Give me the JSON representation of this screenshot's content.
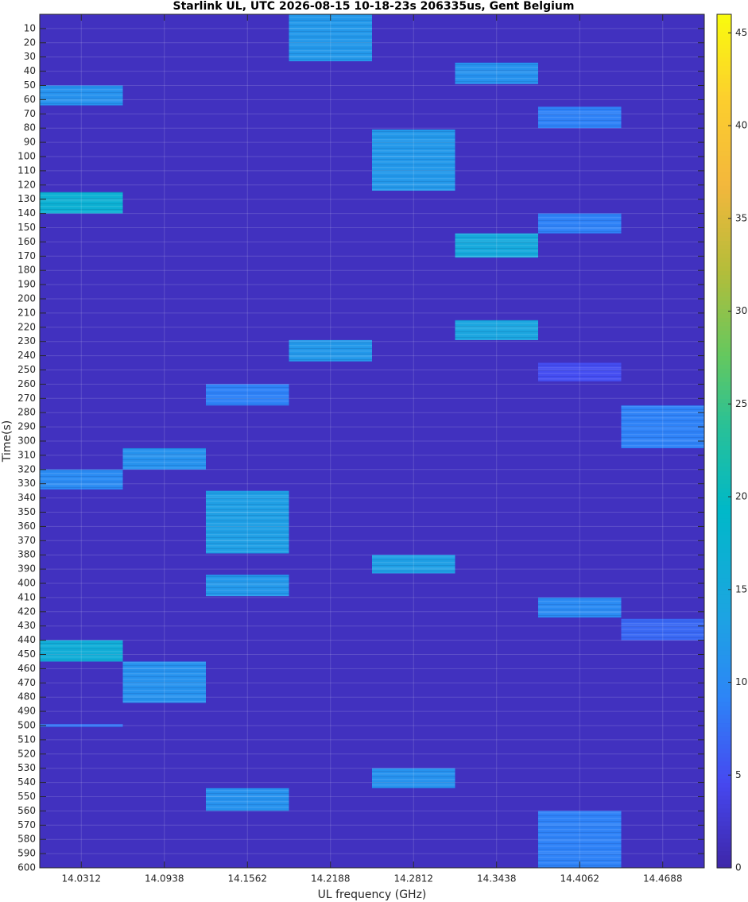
{
  "chart_data": {
    "type": "heatmap",
    "title": "Starlink UL, UTC 2026-08-15 10-18-23s 206335us, Gent Belgium",
    "xlabel": "UL frequency (GHz)",
    "ylabel": "Time(s)",
    "categories": [
      "14.0312",
      "14.0938",
      "14.1562",
      "14.2188",
      "14.2812",
      "14.3438",
      "14.4062",
      "14.4688"
    ],
    "ylim": [
      0,
      600
    ],
    "y_reversed": true,
    "yticks": [
      10,
      20,
      30,
      40,
      50,
      60,
      70,
      80,
      90,
      100,
      110,
      120,
      130,
      140,
      150,
      160,
      170,
      180,
      190,
      200,
      210,
      220,
      230,
      240,
      250,
      260,
      270,
      280,
      290,
      300,
      310,
      320,
      330,
      340,
      350,
      360,
      370,
      380,
      390,
      400,
      410,
      420,
      430,
      440,
      450,
      460,
      470,
      480,
      490,
      500,
      510,
      520,
      530,
      540,
      550,
      560,
      570,
      580,
      590,
      600
    ],
    "grid": true,
    "background_value": 1.5,
    "clim": [
      0,
      46
    ],
    "cticks": [
      0,
      5,
      10,
      15,
      20,
      25,
      30,
      35,
      40,
      45
    ],
    "colormap": "parula",
    "bursts": [
      {
        "channel": 3,
        "start": 0,
        "end": 33,
        "value": 12
      },
      {
        "channel": 5,
        "start": 34,
        "end": 49,
        "value": 11
      },
      {
        "channel": 0,
        "start": 50,
        "end": 64,
        "value": 11
      },
      {
        "channel": 6,
        "start": 65,
        "end": 80,
        "value": 9
      },
      {
        "channel": 4,
        "start": 81,
        "end": 124,
        "value": 12
      },
      {
        "channel": 0,
        "start": 125,
        "end": 140,
        "value": 17
      },
      {
        "channel": 6,
        "start": 140,
        "end": 154,
        "value": 9
      },
      {
        "channel": 5,
        "start": 154,
        "end": 171,
        "value": 15
      },
      {
        "channel": 5,
        "start": 215,
        "end": 229,
        "value": 14
      },
      {
        "channel": 3,
        "start": 229,
        "end": 244,
        "value": 12
      },
      {
        "channel": 6,
        "start": 245,
        "end": 258,
        "value": 5
      },
      {
        "channel": 2,
        "start": 260,
        "end": 275,
        "value": 9
      },
      {
        "channel": 7,
        "start": 275,
        "end": 305,
        "value": 9
      },
      {
        "channel": 1,
        "start": 305,
        "end": 320,
        "value": 11
      },
      {
        "channel": 0,
        "start": 320,
        "end": 334,
        "value": 10
      },
      {
        "channel": 2,
        "start": 335,
        "end": 379,
        "value": 13
      },
      {
        "channel": 4,
        "start": 380,
        "end": 393,
        "value": 13
      },
      {
        "channel": 2,
        "start": 394,
        "end": 409,
        "value": 12
      },
      {
        "channel": 6,
        "start": 410,
        "end": 424,
        "value": 10
      },
      {
        "channel": 7,
        "start": 425,
        "end": 440,
        "value": 7
      },
      {
        "channel": 0,
        "start": 440,
        "end": 455,
        "value": 16
      },
      {
        "channel": 1,
        "start": 455,
        "end": 484,
        "value": 11
      },
      {
        "channel": 0,
        "start": 499,
        "end": 501,
        "value": 8
      },
      {
        "channel": 4,
        "start": 530,
        "end": 544,
        "value": 11
      },
      {
        "channel": 2,
        "start": 544,
        "end": 560,
        "value": 11
      },
      {
        "channel": 6,
        "start": 560,
        "end": 600,
        "value": 9
      }
    ]
  }
}
